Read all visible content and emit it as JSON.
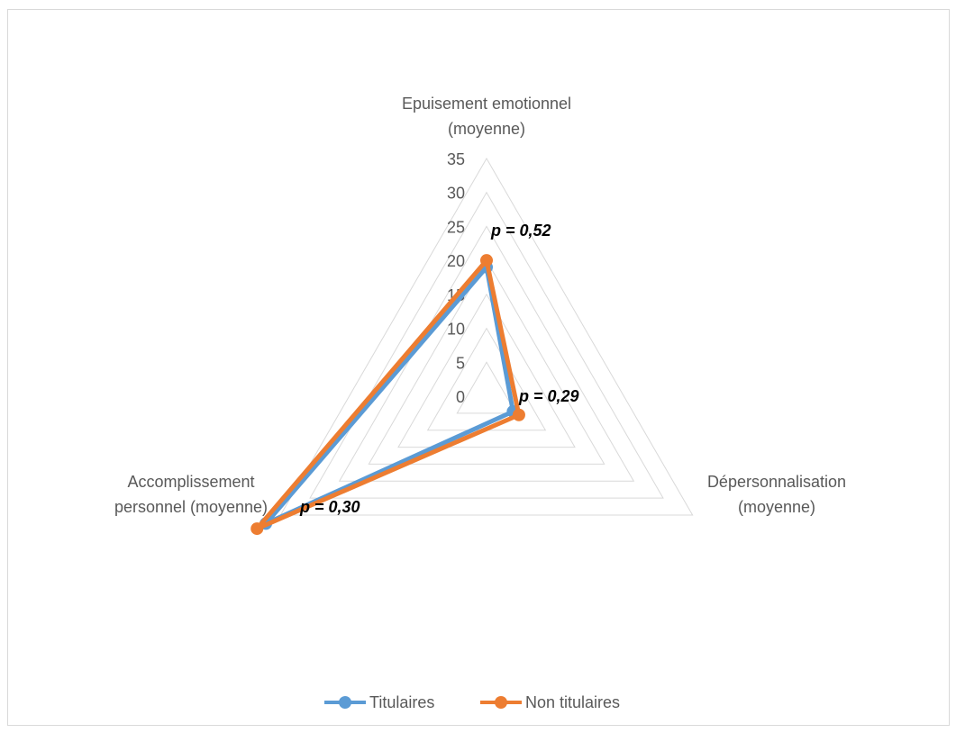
{
  "chart_data": {
    "type": "radar",
    "axes": [
      "Epuisement emotionnel (moyenne)",
      "Dépersonnalisation (moyenne)",
      "Accomplissement personnel (moyenne)"
    ],
    "axis_label_lines": [
      [
        "Epuisement emotionnel",
        "(moyenne)"
      ],
      [
        "Dépersonnalisation",
        "(moyenne)"
      ],
      [
        "Accomplissement",
        "personnel (moyenne)"
      ]
    ],
    "ticks": [
      "0",
      "5",
      "10",
      "15",
      "20",
      "25",
      "30",
      "35"
    ],
    "rlim": [
      0,
      35
    ],
    "series": [
      {
        "name": "Titulaires",
        "values": [
          19,
          4.5,
          37.5
        ],
        "color": "#5b9bd5"
      },
      {
        "name": "Non titulaires",
        "values": [
          20,
          5.5,
          39
        ],
        "color": "#ed7d31"
      }
    ],
    "annotations": [
      "p = 0,52",
      "p = 0,29",
      "p = 0,30"
    ],
    "gridline_color": "#d9d9d9",
    "legend_position": "bottom"
  }
}
